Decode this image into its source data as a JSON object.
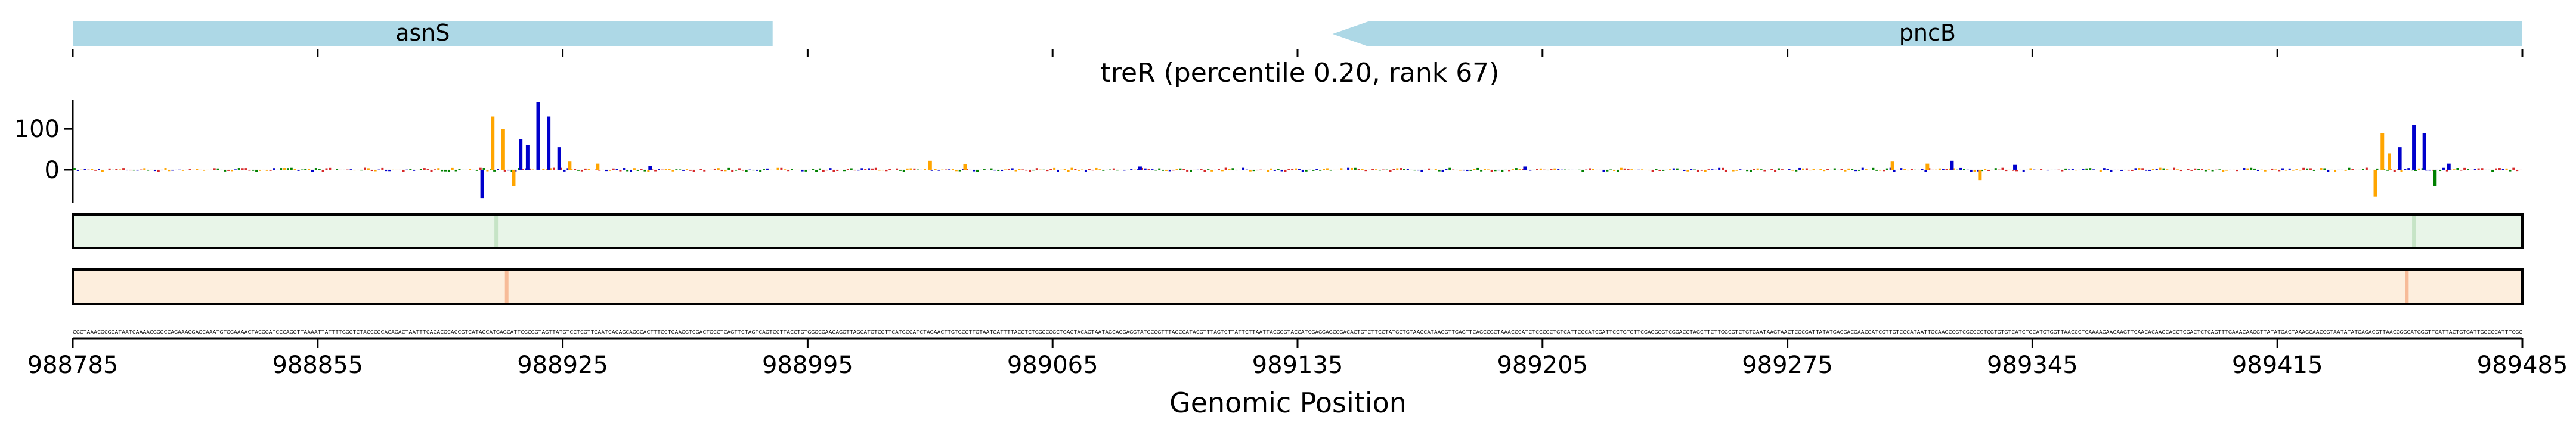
{
  "chart_data": {
    "type": "line",
    "title": "treR (percentile 0.20, rank 67)",
    "xlabel": "Genomic Position",
    "ylabel": "",
    "xlim": [
      988785,
      989485
    ],
    "x_ticks": [
      988785,
      988855,
      988925,
      988995,
      989065,
      989135,
      989205,
      989275,
      989345,
      989415,
      989485
    ],
    "x_tick_labels": [
      "988785",
      "988855",
      "988925",
      "988995",
      "989065",
      "989135",
      "989205",
      "989275",
      "989345",
      "989415",
      "989485"
    ],
    "ylim": [
      -80,
      170
    ],
    "y_ticks": [
      0,
      100
    ],
    "y_tick_labels": [
      "0",
      "100"
    ],
    "genes": [
      {
        "name": "asnS",
        "start": 988785,
        "end": 988985,
        "strand": "+",
        "color": "#add8e6"
      },
      {
        "name": "pncB",
        "start": 989145,
        "end": 989485,
        "strand": "-",
        "color": "#add8e6"
      }
    ],
    "attribution_peaks": [
      {
        "pos": 988902,
        "value": -70,
        "color": "#0000cc"
      },
      {
        "pos": 988905,
        "value": 130,
        "color": "#ffa500"
      },
      {
        "pos": 988908,
        "value": 100,
        "color": "#ffa500"
      },
      {
        "pos": 988911,
        "value": -40,
        "color": "#ffa500"
      },
      {
        "pos": 988913,
        "value": 75,
        "color": "#0000cc"
      },
      {
        "pos": 988915,
        "value": 60,
        "color": "#0000cc"
      },
      {
        "pos": 988918,
        "value": 165,
        "color": "#0000cc"
      },
      {
        "pos": 988921,
        "value": 130,
        "color": "#0000cc"
      },
      {
        "pos": 988924,
        "value": 55,
        "color": "#0000cc"
      },
      {
        "pos": 988927,
        "value": 20,
        "color": "#ffa500"
      },
      {
        "pos": 988935,
        "value": 15,
        "color": "#ffa500"
      },
      {
        "pos": 988950,
        "value": 10,
        "color": "#0000cc"
      },
      {
        "pos": 989030,
        "value": 22,
        "color": "#ffa500"
      },
      {
        "pos": 989040,
        "value": 14,
        "color": "#ffa500"
      },
      {
        "pos": 989090,
        "value": 8,
        "color": "#0000cc"
      },
      {
        "pos": 989200,
        "value": 8,
        "color": "#0000cc"
      },
      {
        "pos": 989305,
        "value": 20,
        "color": "#ffa500"
      },
      {
        "pos": 989315,
        "value": 15,
        "color": "#ffa500"
      },
      {
        "pos": 989322,
        "value": 22,
        "color": "#0000cc"
      },
      {
        "pos": 989330,
        "value": -25,
        "color": "#ffa500"
      },
      {
        "pos": 989340,
        "value": 12,
        "color": "#0000cc"
      },
      {
        "pos": 989443,
        "value": -65,
        "color": "#ffa500"
      },
      {
        "pos": 989445,
        "value": 90,
        "color": "#ffa500"
      },
      {
        "pos": 989447,
        "value": 40,
        "color": "#ffa500"
      },
      {
        "pos": 989450,
        "value": 55,
        "color": "#0000cc"
      },
      {
        "pos": 989454,
        "value": 110,
        "color": "#0000cc"
      },
      {
        "pos": 989457,
        "value": 90,
        "color": "#0000cc"
      },
      {
        "pos": 989460,
        "value": -40,
        "color": "#008000"
      },
      {
        "pos": 989464,
        "value": 15,
        "color": "#0000cc"
      }
    ],
    "tracks": [
      {
        "name": "track-green",
        "color": "#e8f5e8",
        "highlight_color": "#b8ddb8",
        "highlights": [
          988906,
          989454
        ]
      },
      {
        "name": "track-orange",
        "color": "#fdeedd",
        "highlight_color": "#f3a57a",
        "highlights": [
          988909,
          989452
        ]
      }
    ],
    "colors": {
      "bases": [
        "#008000",
        "#0000cc",
        "#ffa500",
        "#d62728"
      ]
    }
  }
}
